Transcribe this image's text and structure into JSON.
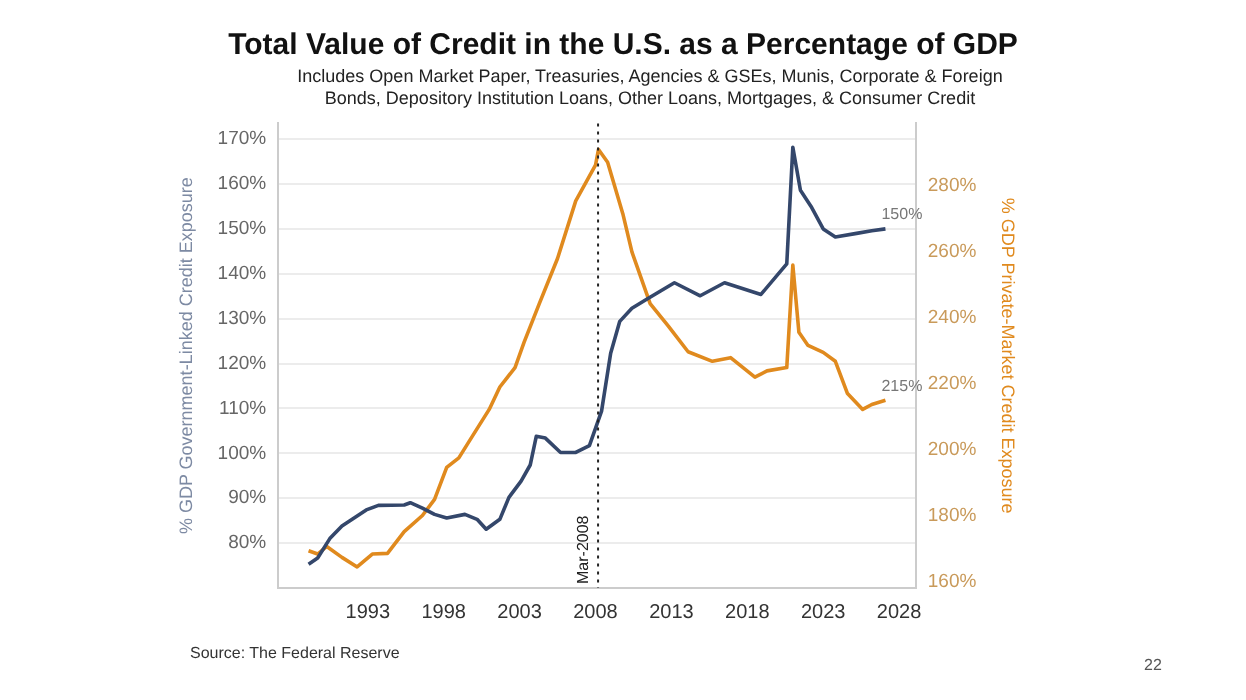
{
  "chart_data": {
    "type": "line",
    "title": "Total Value of Credit in the U.S. as a Percentage of GDP",
    "subtitle": "Includes Open Market Paper, Treasuries, Agencies & GSEs, Munis, Corporate & Foreign Bonds, Depository Institution Loans, Other Loans, Mortgages, & Consumer Credit",
    "ylabel": "% GDP Government-Linked Credit Exposure",
    "y2label": "% GDP Private-Market Credit Exposure",
    "annotations": [
      "Source: The Federal Reserve",
      "22"
    ],
    "xlim": [
      1987.1,
      2029.1
    ],
    "xticks": [
      1993,
      1998,
      2003,
      2008,
      2013,
      2018,
      2023,
      2028
    ],
    "ylim": [
      70,
      173.5
    ],
    "yticks": [
      {
        "value": 80,
        "label": "80%"
      },
      {
        "value": 90,
        "label": "90%"
      },
      {
        "value": 100,
        "label": "100%"
      },
      {
        "value": 110,
        "label": "110%"
      },
      {
        "value": 120,
        "label": "120%"
      },
      {
        "value": 130,
        "label": "130%"
      },
      {
        "value": 140,
        "label": "140%"
      },
      {
        "value": 150,
        "label": "150%"
      },
      {
        "value": 160,
        "label": "160%"
      },
      {
        "value": 170,
        "label": "170%"
      }
    ],
    "y2lim": [
      158,
      299
    ],
    "y2ticks": [
      {
        "value": 160,
        "label": "160%"
      },
      {
        "value": 180,
        "label": "180%"
      },
      {
        "value": 200,
        "label": "200%"
      },
      {
        "value": 220,
        "label": "220%"
      },
      {
        "value": 240,
        "label": "240%"
      },
      {
        "value": 260,
        "label": "260%"
      },
      {
        "value": 280,
        "label": "280%"
      }
    ],
    "grid": "y",
    "marker": "none",
    "ref_lines": [
      {
        "axis": "x",
        "value": 2008.17,
        "label": "Mar-2008",
        "color": "#222222",
        "line_style": "dotted"
      }
    ],
    "series": [
      {
        "color": "#34476b",
        "axis": "y",
        "x": [
          1989.1,
          1989.7,
          1990.5,
          1991.3,
          1992.9,
          1993.7,
          1995.4,
          1995.8,
          1996.6,
          1997.4,
          1998.2,
          1999.4,
          2000.2,
          2000.8,
          2001.7,
          2002.3,
          2003.1,
          2003.7,
          2004.1,
          2004.7,
          2005.7,
          2006.7,
          2007.6,
          2008.4,
          2009.0,
          2009.6,
          2010.4,
          2011.4,
          2013.2,
          2014.9,
          2016.5,
          2018.9,
          2020.6,
          2021.0,
          2021.5,
          2022.2,
          2023.0,
          2023.8,
          2025.2,
          2026.2,
          2027.1
        ],
        "values": [
          75.3,
          76.7,
          81,
          83.8,
          87.4,
          88.4,
          88.5,
          89,
          87.8,
          86.4,
          85.6,
          86.4,
          85.3,
          83.1,
          85.3,
          90.2,
          93.8,
          97.4,
          103.8,
          103.4,
          100.2,
          100.2,
          101.7,
          109.4,
          122.3,
          129.4,
          132.3,
          134.4,
          138,
          135.1,
          138,
          135.4,
          142.2,
          168.2,
          158.6,
          155,
          150,
          148.2,
          149,
          149.6,
          150
        ],
        "value_labels": [
          null,
          null,
          null,
          null,
          null,
          null,
          null,
          null,
          null,
          null,
          null,
          null,
          null,
          null,
          null,
          null,
          null,
          null,
          null,
          null,
          null,
          null,
          null,
          null,
          null,
          null,
          null,
          null,
          null,
          null,
          null,
          null,
          null,
          null,
          null,
          null,
          null,
          null,
          null,
          null,
          "150%"
        ]
      },
      {
        "color": "#e08a1e",
        "axis": "y2",
        "x": [
          1989.1,
          1989.7,
          1990.3,
          1991.3,
          1992.3,
          1993.3,
          1994.3,
          1995.4,
          1996.6,
          1997.4,
          1998.2,
          1999.0,
          1999.8,
          2001.0,
          2001.7,
          2002.7,
          2003.3,
          2004.3,
          2005.5,
          2006.7,
          2008.0,
          2008.2,
          2008.8,
          2009.8,
          2010.4,
          2011.6,
          2012.8,
          2014.1,
          2015.7,
          2016.9,
          2018.5,
          2019.3,
          2020.6,
          2021.0,
          2021.4,
          2022.0,
          2023.0,
          2023.8,
          2024.6,
          2025.6,
          2026.2,
          2027.1
        ],
        "values": [
          169.3,
          168.3,
          170.6,
          167.3,
          164.4,
          168.3,
          168.5,
          175.1,
          180,
          184.9,
          194.6,
          197.5,
          203.4,
          212.2,
          219,
          224.9,
          232.6,
          244.3,
          258,
          275.5,
          286.3,
          291.1,
          287.2,
          271.6,
          260,
          244.3,
          237.5,
          229.7,
          226.8,
          227.9,
          222,
          223.9,
          224.9,
          256,
          235.6,
          231.6,
          229.5,
          226.8,
          217,
          212.2,
          213.7,
          215
        ],
        "value_labels": [
          null,
          null,
          null,
          null,
          null,
          null,
          null,
          null,
          null,
          null,
          null,
          null,
          null,
          null,
          null,
          null,
          null,
          null,
          null,
          null,
          null,
          null,
          null,
          null,
          null,
          null,
          null,
          null,
          null,
          null,
          null,
          null,
          null,
          null,
          null,
          null,
          null,
          null,
          null,
          null,
          null,
          "215%"
        ]
      }
    ]
  }
}
